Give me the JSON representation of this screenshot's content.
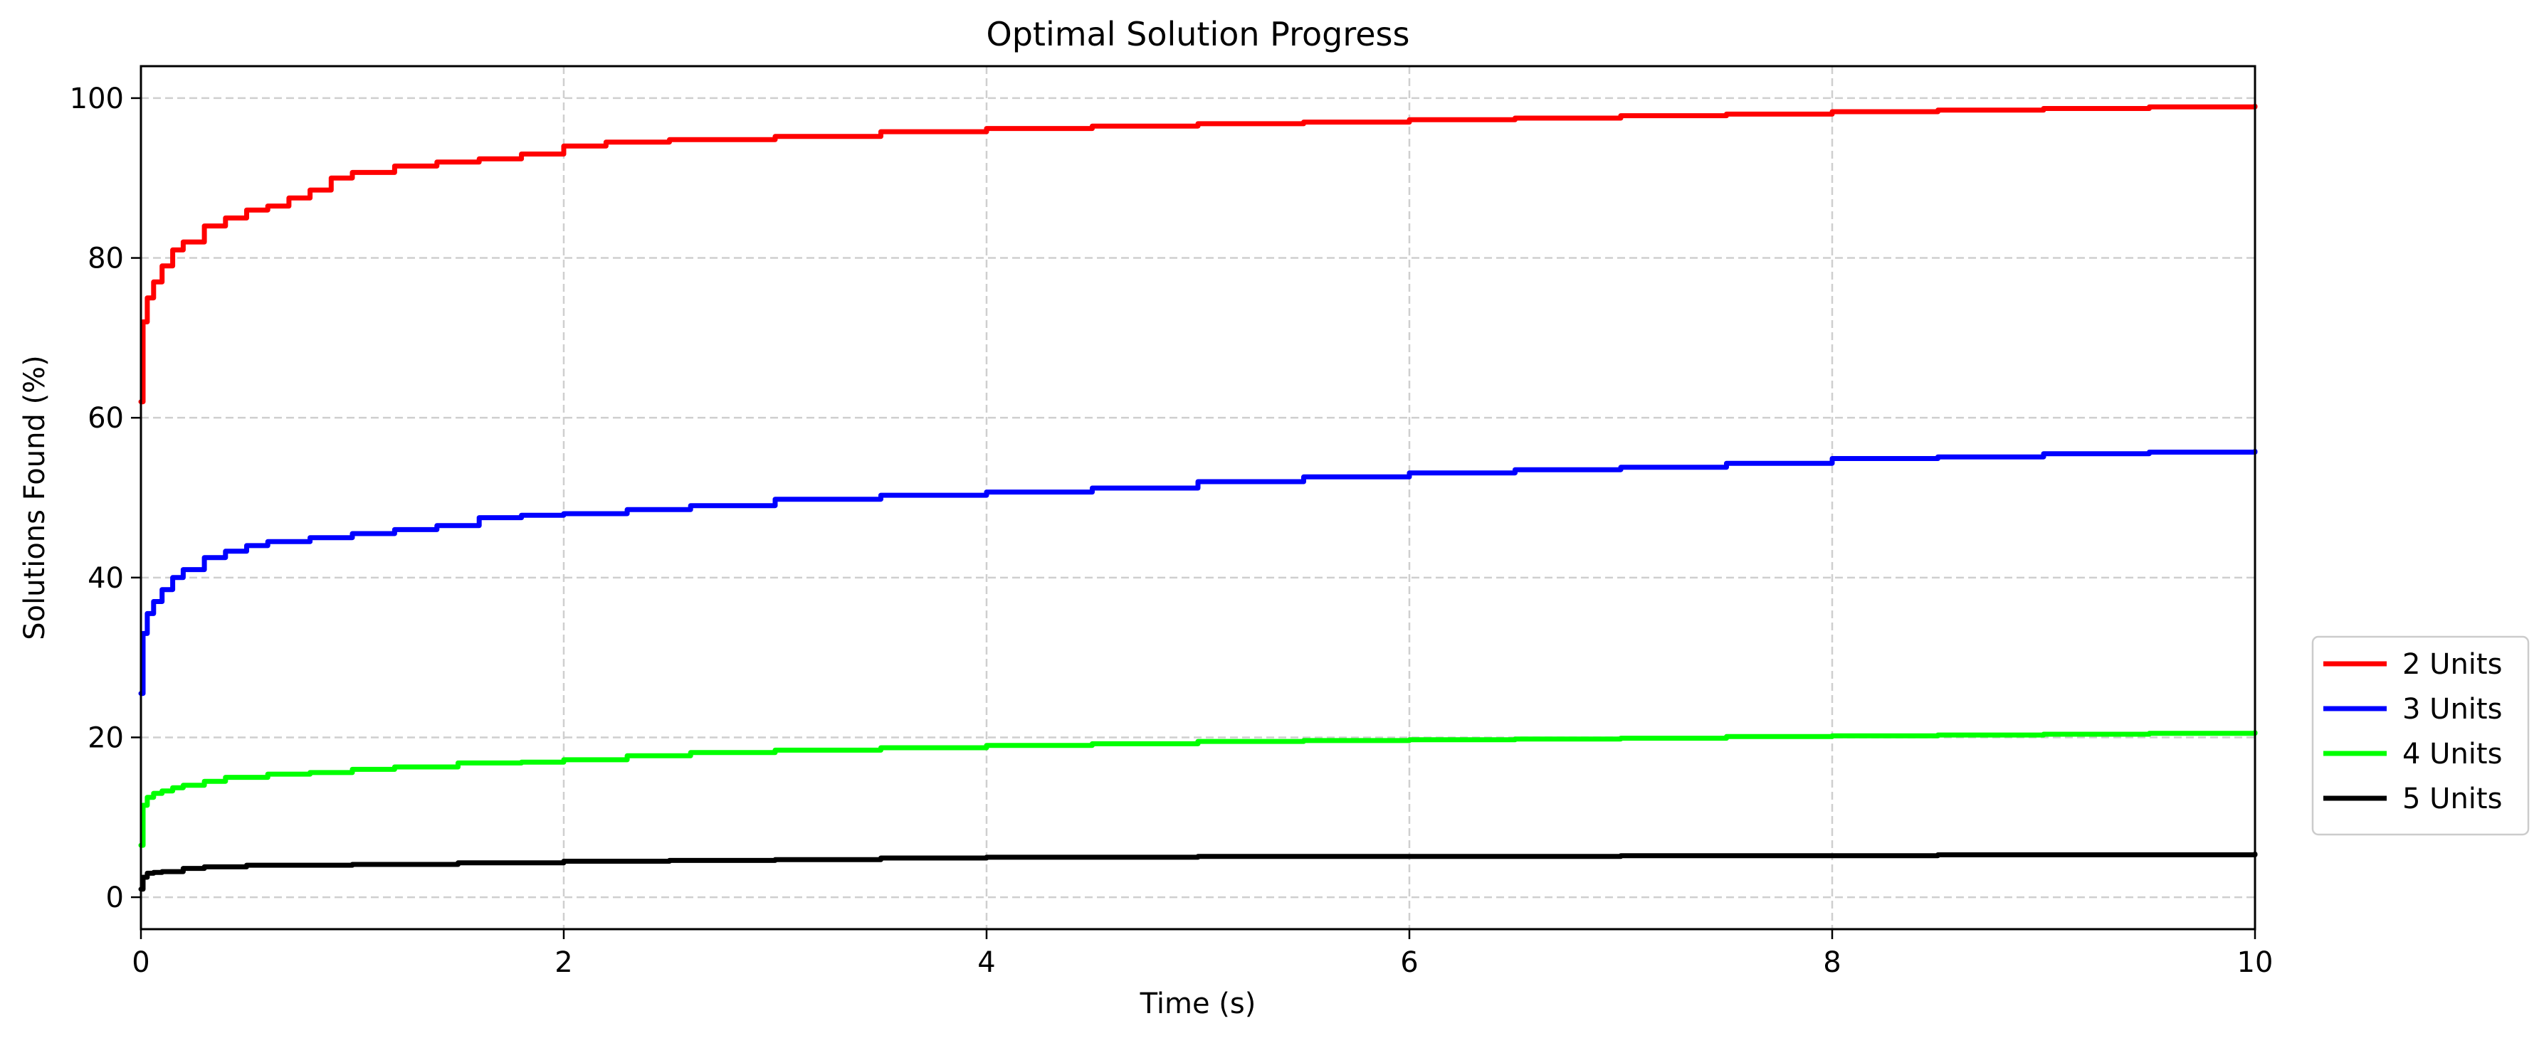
{
  "chart_data": {
    "type": "line",
    "title": "Optimal Solution Progress",
    "xlabel": "Time (s)",
    "ylabel": "Solutions Found (%)",
    "xlim": [
      0,
      10
    ],
    "ylim": [
      -4,
      104
    ],
    "xticks": [
      0,
      2,
      4,
      6,
      8,
      10
    ],
    "yticks": [
      0,
      20,
      40,
      60,
      80,
      100
    ],
    "grid": true,
    "legend_position": "outside right, bottom",
    "series": [
      {
        "name": "2 Units",
        "color": "#ff0000",
        "x": [
          0,
          0.01,
          0.03,
          0.06,
          0.1,
          0.15,
          0.2,
          0.3,
          0.4,
          0.5,
          0.6,
          0.7,
          0.8,
          0.9,
          1.0,
          1.2,
          1.4,
          1.6,
          1.8,
          2.0,
          2.2,
          2.5,
          3.0,
          3.5,
          4.0,
          4.5,
          5.0,
          5.5,
          6.0,
          6.5,
          7.0,
          7.5,
          8.0,
          8.5,
          9.0,
          9.5,
          10.0
        ],
        "y": [
          62,
          72,
          75,
          77,
          79,
          81,
          82,
          84,
          85,
          86,
          86.5,
          87.5,
          88.5,
          90,
          90.7,
          91.5,
          92,
          92.4,
          93,
          94,
          94.5,
          94.8,
          95.2,
          95.8,
          96.2,
          96.5,
          96.8,
          97,
          97.3,
          97.5,
          97.8,
          98,
          98.3,
          98.5,
          98.7,
          98.9,
          99
        ]
      },
      {
        "name": "3 Units",
        "color": "#0000ff",
        "x": [
          0,
          0.01,
          0.03,
          0.06,
          0.1,
          0.15,
          0.2,
          0.3,
          0.4,
          0.5,
          0.6,
          0.8,
          1.0,
          1.2,
          1.4,
          1.6,
          1.8,
          2.0,
          2.3,
          2.6,
          3.0,
          3.5,
          4.0,
          4.5,
          5.0,
          5.5,
          6.0,
          6.5,
          7.0,
          7.5,
          8.0,
          8.5,
          9.0,
          9.5,
          10.0
        ],
        "y": [
          25.5,
          33,
          35.5,
          37,
          38.5,
          40,
          41,
          42.5,
          43.3,
          44,
          44.5,
          45,
          45.5,
          46,
          46.5,
          47.5,
          47.8,
          48,
          48.5,
          49,
          49.8,
          50.3,
          50.7,
          51.2,
          52,
          52.6,
          53.1,
          53.5,
          53.8,
          54.3,
          54.9,
          55.1,
          55.5,
          55.7,
          55.8
        ]
      },
      {
        "name": "4 Units",
        "color": "#00ff00",
        "x": [
          0,
          0.01,
          0.03,
          0.06,
          0.1,
          0.15,
          0.2,
          0.3,
          0.4,
          0.6,
          0.8,
          1.0,
          1.2,
          1.5,
          1.8,
          2.0,
          2.3,
          2.6,
          3.0,
          3.5,
          4.0,
          4.5,
          5.0,
          5.5,
          6.0,
          6.5,
          7.0,
          7.5,
          8.0,
          8.5,
          9.0,
          9.5,
          10.0
        ],
        "y": [
          6.5,
          11.5,
          12.5,
          13,
          13.3,
          13.7,
          14,
          14.5,
          15,
          15.4,
          15.6,
          16,
          16.3,
          16.8,
          16.9,
          17.2,
          17.7,
          18.1,
          18.4,
          18.7,
          19,
          19.2,
          19.5,
          19.6,
          19.7,
          19.8,
          19.9,
          20.1,
          20.2,
          20.3,
          20.4,
          20.5,
          20.6
        ]
      },
      {
        "name": "5 Units",
        "color": "#000000",
        "x": [
          0,
          0.01,
          0.03,
          0.06,
          0.1,
          0.2,
          0.3,
          0.5,
          1.0,
          1.5,
          2.0,
          2.5,
          3.0,
          3.5,
          4.0,
          5.0,
          6.0,
          7.0,
          8.0,
          8.5,
          9.0,
          10.0
        ],
        "y": [
          1,
          2.5,
          3,
          3.1,
          3.2,
          3.6,
          3.8,
          4,
          4.1,
          4.3,
          4.5,
          4.6,
          4.7,
          4.9,
          5,
          5.1,
          5.1,
          5.2,
          5.2,
          5.3,
          5.3,
          5.4
        ]
      }
    ]
  }
}
